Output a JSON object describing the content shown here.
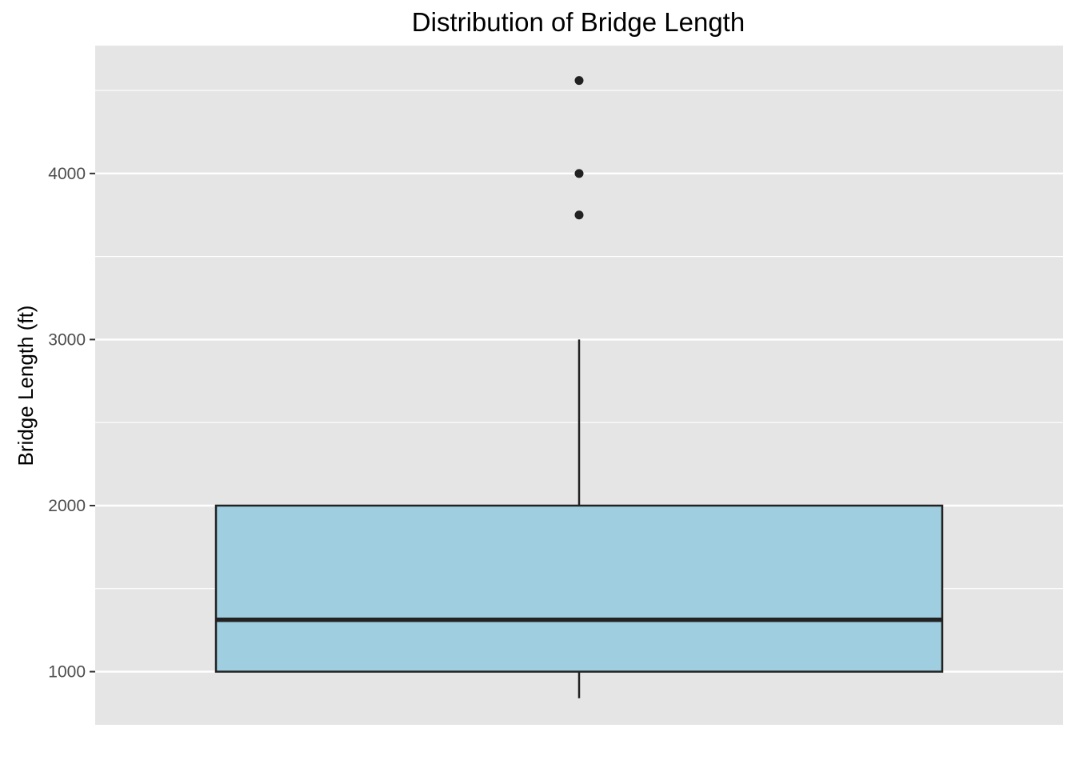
{
  "chart_data": {
    "type": "box",
    "title": "Distribution of Bridge Length",
    "xlabel": "",
    "ylabel": "Bridge Length (ft)",
    "ylim": [
      680,
      4770
    ],
    "yticks": [
      1000,
      2000,
      3000,
      4000
    ],
    "ytick_labels": [
      "1000",
      "2000",
      "3000",
      "4000"
    ],
    "minor_yticks": [
      1500,
      2500,
      3500,
      4500
    ],
    "grid": true,
    "box": {
      "min": 840,
      "q1": 1000,
      "median": 1312,
      "q3": 2000,
      "max": 3000,
      "outliers": [
        3750,
        4000,
        4560
      ]
    },
    "colors": {
      "panel": "#e5e5e5",
      "grid": "#ffffff",
      "box_fill": "#9ecee0",
      "box_stroke": "#222222",
      "outlier": "#222222",
      "tick_label": "#4d4d4d"
    }
  }
}
